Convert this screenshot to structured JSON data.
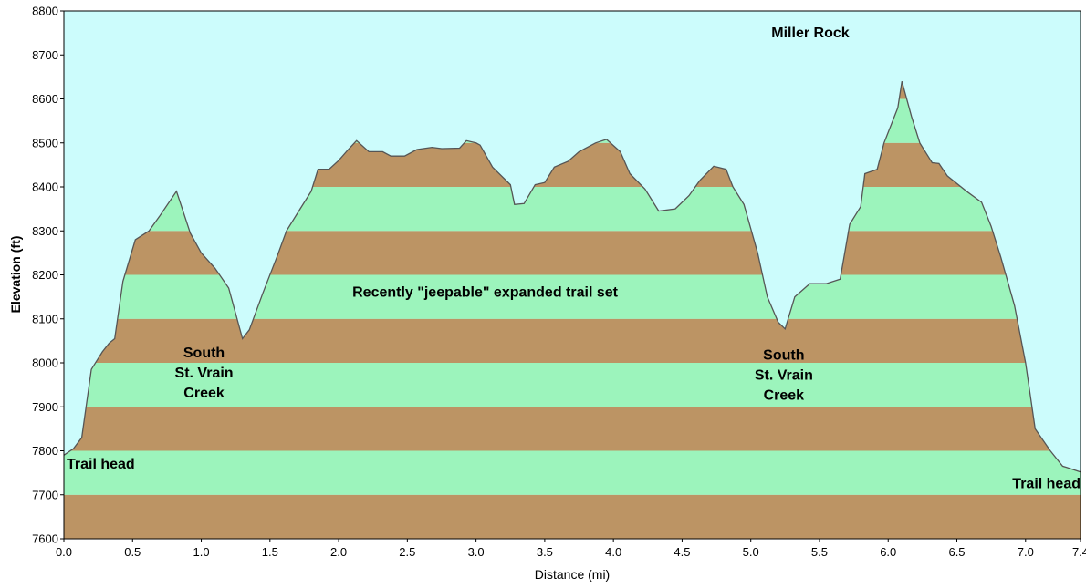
{
  "chart_data": {
    "type": "area",
    "title": "",
    "xlabel": "Distance   (mi)",
    "ylabel": "Elevation (ft)",
    "xlim": [
      0.0,
      7.4
    ],
    "ylim": [
      7600,
      8800
    ],
    "x_ticks": [
      "0.0",
      "0.5",
      "1.0",
      "1.5",
      "2.0",
      "2.5",
      "3.0",
      "3.5",
      "4.0",
      "4.5",
      "5.0",
      "5.5",
      "6.0",
      "6.5",
      "7.0",
      "7.4"
    ],
    "y_ticks": [
      "7600",
      "7700",
      "7800",
      "7900",
      "8000",
      "8100",
      "8200",
      "8300",
      "8400",
      "8500",
      "8600",
      "8700",
      "8800"
    ],
    "band_size": 100,
    "colors": {
      "sky": "#ccfcfc",
      "band_brown": "#bc9464",
      "band_green": "#9cf4bc",
      "outline": "#555555",
      "plot_border": "#000000"
    },
    "series": [
      {
        "points": [
          [
            0.0,
            7790
          ],
          [
            0.07,
            7805
          ],
          [
            0.13,
            7830
          ],
          [
            0.2,
            7985
          ],
          [
            0.28,
            8025
          ],
          [
            0.33,
            8045
          ],
          [
            0.37,
            8055
          ],
          [
            0.43,
            8185
          ],
          [
            0.52,
            8280
          ],
          [
            0.62,
            8300
          ],
          [
            0.7,
            8335
          ],
          [
            0.82,
            8390
          ],
          [
            0.92,
            8295
          ],
          [
            1.0,
            8250
          ],
          [
            1.1,
            8215
          ],
          [
            1.2,
            8170
          ],
          [
            1.3,
            8055
          ],
          [
            1.35,
            8075
          ],
          [
            1.45,
            8160
          ],
          [
            1.55,
            8240
          ],
          [
            1.62,
            8300
          ],
          [
            1.72,
            8350
          ],
          [
            1.8,
            8390
          ],
          [
            1.85,
            8440
          ],
          [
            1.93,
            8440
          ],
          [
            2.0,
            8460
          ],
          [
            2.07,
            8485
          ],
          [
            2.13,
            8505
          ],
          [
            2.22,
            8480
          ],
          [
            2.32,
            8480
          ],
          [
            2.38,
            8470
          ],
          [
            2.48,
            8470
          ],
          [
            2.57,
            8485
          ],
          [
            2.68,
            8490
          ],
          [
            2.75,
            8487
          ],
          [
            2.88,
            8488
          ],
          [
            2.93,
            8505
          ],
          [
            3.0,
            8500
          ],
          [
            3.03,
            8495
          ],
          [
            3.12,
            8445
          ],
          [
            3.25,
            8405
          ],
          [
            3.28,
            8360
          ],
          [
            3.35,
            8362
          ],
          [
            3.43,
            8405
          ],
          [
            3.5,
            8410
          ],
          [
            3.57,
            8445
          ],
          [
            3.67,
            8458
          ],
          [
            3.75,
            8480
          ],
          [
            3.87,
            8500
          ],
          [
            3.95,
            8508
          ],
          [
            4.05,
            8480
          ],
          [
            4.12,
            8430
          ],
          [
            4.23,
            8395
          ],
          [
            4.33,
            8345
          ],
          [
            4.45,
            8350
          ],
          [
            4.55,
            8380
          ],
          [
            4.63,
            8415
          ],
          [
            4.73,
            8447
          ],
          [
            4.82,
            8440
          ],
          [
            4.87,
            8400
          ],
          [
            4.95,
            8360
          ],
          [
            5.05,
            8250
          ],
          [
            5.12,
            8150
          ],
          [
            5.2,
            8092
          ],
          [
            5.25,
            8077
          ],
          [
            5.32,
            8150
          ],
          [
            5.43,
            8180
          ],
          [
            5.55,
            8180
          ],
          [
            5.65,
            8190
          ],
          [
            5.72,
            8315
          ],
          [
            5.8,
            8355
          ],
          [
            5.83,
            8430
          ],
          [
            5.92,
            8440
          ],
          [
            5.97,
            8500
          ],
          [
            6.07,
            8580
          ],
          [
            6.1,
            8640
          ],
          [
            6.17,
            8560
          ],
          [
            6.23,
            8500
          ],
          [
            6.32,
            8455
          ],
          [
            6.37,
            8453
          ],
          [
            6.43,
            8425
          ],
          [
            6.57,
            8390
          ],
          [
            6.68,
            8365
          ],
          [
            6.75,
            8310
          ],
          [
            6.82,
            8240
          ],
          [
            6.92,
            8130
          ],
          [
            7.0,
            8000
          ],
          [
            7.07,
            7850
          ],
          [
            7.18,
            7800
          ],
          [
            7.27,
            7765
          ],
          [
            7.3,
            7762
          ]
        ]
      }
    ],
    "annotations": [
      {
        "lines": [
          "Miller Rock"
        ],
        "x": 5.15,
        "y": 8740,
        "align": "start"
      },
      {
        "lines": [
          "Recently \"jeepable\" expanded trail set"
        ],
        "x": 2.1,
        "y": 8150,
        "align": "start"
      },
      {
        "lines": [
          "South",
          "St. Vrain",
          "Creek"
        ],
        "x": 1.02,
        "y": 8012,
        "align": "middle"
      },
      {
        "lines": [
          "South",
          "St. Vrain",
          "Creek"
        ],
        "x": 5.24,
        "y": 8007,
        "align": "middle"
      },
      {
        "lines": [
          "Trail head"
        ],
        "x": 0.02,
        "y": 7760,
        "align": "start"
      },
      {
        "lines": [
          "Trail head"
        ],
        "x": 7.4,
        "y": 7715,
        "align": "end"
      }
    ]
  }
}
